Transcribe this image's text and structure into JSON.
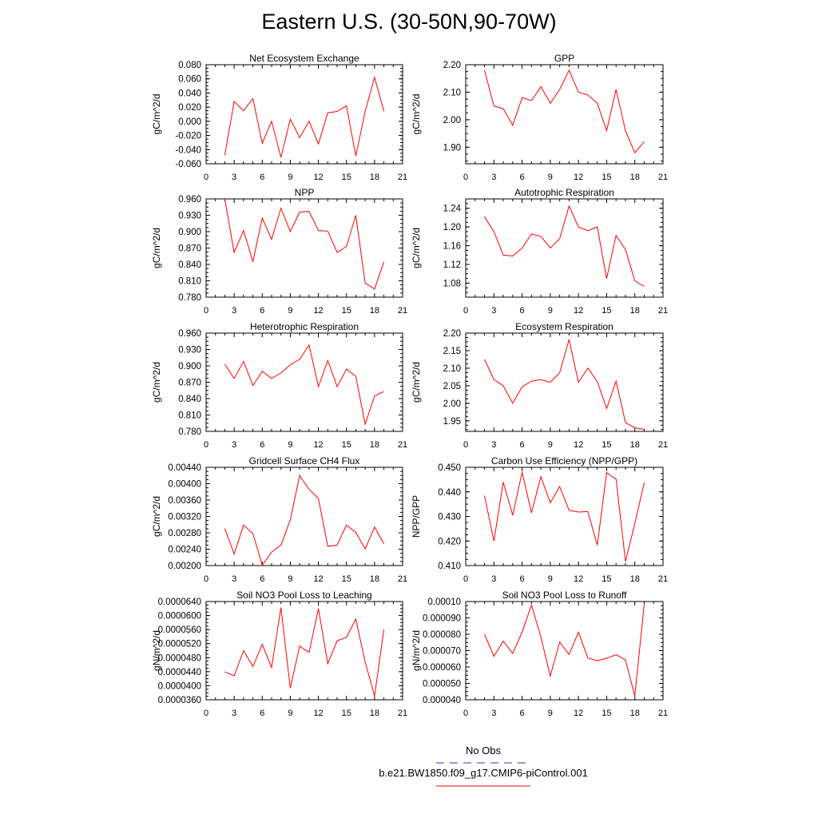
{
  "title": "Eastern U.S. (30-50N,90-70W)",
  "colors": {
    "series": "#ff0000",
    "obs": "#3333cc",
    "axis": "#000000"
  },
  "legend": [
    {
      "label": "No Obs",
      "color": "#3333cc",
      "style": "dashed"
    },
    {
      "label": "b.e21.BW1850.f09_g17.CMIP6-piControl.001",
      "color": "#ff0000",
      "style": "solid"
    }
  ],
  "chart_data": [
    {
      "type": "line",
      "title": "Net Ecosystem Exchange",
      "ylabel": "gC/m^2/d",
      "xlabel": "",
      "xlim": [
        0,
        21
      ],
      "xticks": [
        "0",
        "3",
        "6",
        "9",
        "12",
        "15",
        "18",
        "21"
      ],
      "ylim": [
        -0.06,
        0.08
      ],
      "yticks": [
        "-0.060",
        "-0.040",
        "-0.020",
        "0.000",
        "0.020",
        "0.040",
        "0.060",
        "0.080"
      ],
      "x": [
        2,
        3,
        4,
        5,
        6,
        7,
        8,
        9,
        10,
        11,
        12,
        13,
        14,
        15,
        16,
        17,
        18,
        19
      ],
      "series": [
        {
          "name": "b.e21.BW1850.f09_g17.CMIP6-piControl.001",
          "values": [
            -0.048,
            0.028,
            0.015,
            0.032,
            -0.031,
            0.0,
            -0.051,
            0.003,
            -0.023,
            0.0,
            -0.032,
            0.012,
            0.014,
            0.022,
            -0.049,
            0.014,
            0.062,
            0.014
          ]
        }
      ]
    },
    {
      "type": "line",
      "title": "GPP",
      "ylabel": "gC/m^2/d",
      "xlabel": "",
      "xlim": [
        0,
        21
      ],
      "xticks": [
        "0",
        "3",
        "6",
        "9",
        "12",
        "15",
        "18",
        "21"
      ],
      "ylim": [
        1.84,
        2.2
      ],
      "yticks": [
        "1.90",
        "2.00",
        "2.10",
        "2.20"
      ],
      "x": [
        2,
        3,
        4,
        5,
        6,
        7,
        8,
        9,
        10,
        11,
        12,
        13,
        14,
        15,
        16,
        17,
        18,
        19
      ],
      "series": [
        {
          "name": "b.e21.BW1850.f09_g17.CMIP6-piControl.001",
          "values": [
            2.18,
            2.05,
            2.04,
            1.98,
            2.08,
            2.07,
            2.12,
            2.06,
            2.11,
            2.18,
            2.1,
            2.09,
            2.06,
            1.96,
            2.11,
            1.96,
            1.88,
            1.92
          ]
        }
      ]
    },
    {
      "type": "line",
      "title": "NPP",
      "ylabel": "gC/m^2/d",
      "xlabel": "",
      "xlim": [
        0,
        21
      ],
      "xticks": [
        "0",
        "3",
        "6",
        "9",
        "12",
        "15",
        "18",
        "21"
      ],
      "ylim": [
        0.78,
        0.96
      ],
      "yticks": [
        "0.780",
        "0.810",
        "0.840",
        "0.870",
        "0.900",
        "0.930",
        "0.960"
      ],
      "x": [
        2,
        3,
        4,
        5,
        6,
        7,
        8,
        9,
        10,
        11,
        12,
        13,
        14,
        15,
        16,
        17,
        18,
        19
      ],
      "series": [
        {
          "name": "b.e21.BW1850.f09_g17.CMIP6-piControl.001",
          "values": [
            0.96,
            0.862,
            0.902,
            0.845,
            0.925,
            0.886,
            0.943,
            0.9,
            0.936,
            0.937,
            0.902,
            0.901,
            0.862,
            0.873,
            0.93,
            0.806,
            0.795,
            0.845
          ]
        }
      ]
    },
    {
      "type": "line",
      "title": "Autotrophic Respiration",
      "ylabel": "gC/m^2/d",
      "xlabel": "",
      "xlim": [
        0,
        21
      ],
      "xticks": [
        "0",
        "3",
        "6",
        "9",
        "12",
        "15",
        "18",
        "21"
      ],
      "ylim": [
        1.05,
        1.26
      ],
      "yticks": [
        "1.08",
        "1.12",
        "1.16",
        "1.20",
        "1.24"
      ],
      "x": [
        2,
        3,
        4,
        5,
        6,
        7,
        8,
        9,
        10,
        11,
        12,
        13,
        14,
        15,
        16,
        17,
        18,
        19
      ],
      "series": [
        {
          "name": "b.e21.BW1850.f09_g17.CMIP6-piControl.001",
          "values": [
            1.222,
            1.19,
            1.14,
            1.138,
            1.155,
            1.185,
            1.18,
            1.155,
            1.175,
            1.245,
            1.2,
            1.192,
            1.2,
            1.09,
            1.182,
            1.152,
            1.085,
            1.073
          ]
        }
      ]
    },
    {
      "type": "line",
      "title": "Heterotrophic Respiration",
      "ylabel": "gC/m^2/d",
      "xlabel": "",
      "xlim": [
        0,
        21
      ],
      "xticks": [
        "0",
        "3",
        "6",
        "9",
        "12",
        "15",
        "18",
        "21"
      ],
      "ylim": [
        0.78,
        0.96
      ],
      "yticks": [
        "0.780",
        "0.810",
        "0.840",
        "0.870",
        "0.900",
        "0.930",
        "0.960"
      ],
      "x": [
        2,
        3,
        4,
        5,
        6,
        7,
        8,
        9,
        10,
        11,
        12,
        13,
        14,
        15,
        16,
        17,
        18,
        19
      ],
      "series": [
        {
          "name": "b.e21.BW1850.f09_g17.CMIP6-piControl.001",
          "values": [
            0.903,
            0.877,
            0.908,
            0.864,
            0.89,
            0.877,
            0.887,
            0.902,
            0.912,
            0.938,
            0.862,
            0.91,
            0.862,
            0.894,
            0.881,
            0.793,
            0.845,
            0.853
          ]
        }
      ]
    },
    {
      "type": "line",
      "title": "Ecosystem Respiration",
      "ylabel": "gC/m^2/d",
      "xlabel": "",
      "xlim": [
        0,
        21
      ],
      "xticks": [
        "0",
        "3",
        "6",
        "9",
        "12",
        "15",
        "18",
        "21"
      ],
      "ylim": [
        1.92,
        2.2
      ],
      "yticks": [
        "1.95",
        "2.00",
        "2.05",
        "2.10",
        "2.15",
        "2.20"
      ],
      "x": [
        2,
        3,
        4,
        5,
        6,
        7,
        8,
        9,
        10,
        11,
        12,
        13,
        14,
        15,
        16,
        17,
        18,
        19
      ],
      "series": [
        {
          "name": "b.e21.BW1850.f09_g17.CMIP6-piControl.001",
          "values": [
            2.125,
            2.068,
            2.05,
            2.0,
            2.047,
            2.063,
            2.067,
            2.06,
            2.087,
            2.182,
            2.06,
            2.1,
            2.062,
            1.985,
            2.063,
            1.945,
            1.93,
            1.926
          ]
        }
      ]
    },
    {
      "type": "line",
      "title": "Gridcell Surface CH4 Flux",
      "ylabel": "gC/m^2/d",
      "xlabel": "",
      "xlim": [
        0,
        21
      ],
      "xticks": [
        "0",
        "3",
        "6",
        "9",
        "12",
        "15",
        "18",
        "21"
      ],
      "ylim": [
        0.002,
        0.0044
      ],
      "yticks": [
        "0.00200",
        "0.00240",
        "0.00280",
        "0.00320",
        "0.00360",
        "0.00400",
        "0.00440"
      ],
      "x": [
        2,
        3,
        4,
        5,
        6,
        7,
        8,
        9,
        10,
        11,
        12,
        13,
        14,
        15,
        16,
        17,
        18,
        19
      ],
      "series": [
        {
          "name": "b.e21.BW1850.f09_g17.CMIP6-piControl.001",
          "values": [
            0.00291,
            0.00228,
            0.00299,
            0.00278,
            0.00201,
            0.00233,
            0.0025,
            0.00312,
            0.0042,
            0.00386,
            0.00364,
            0.00247,
            0.0025,
            0.00299,
            0.00281,
            0.00241,
            0.00294,
            0.00253
          ]
        }
      ]
    },
    {
      "type": "line",
      "title": "Carbon Use Efficiency (NPP/GPP)",
      "ylabel": "NPP/GPP",
      "xlabel": "",
      "xlim": [
        0,
        21
      ],
      "xticks": [
        "0",
        "3",
        "6",
        "9",
        "12",
        "15",
        "18",
        "21"
      ],
      "ylim": [
        0.41,
        0.45
      ],
      "yticks": [
        "0.410",
        "0.420",
        "0.430",
        "0.440",
        "0.450"
      ],
      "x": [
        2,
        3,
        4,
        5,
        6,
        7,
        8,
        9,
        10,
        11,
        12,
        13,
        14,
        15,
        16,
        17,
        18,
        19
      ],
      "series": [
        {
          "name": "b.e21.BW1850.f09_g17.CMIP6-piControl.001",
          "values": [
            0.4385,
            0.42,
            0.444,
            0.4305,
            0.448,
            0.4315,
            0.4462,
            0.4355,
            0.4422,
            0.4325,
            0.4318,
            0.432,
            0.4183,
            0.4478,
            0.4452,
            0.4117,
            0.4272,
            0.4437
          ]
        }
      ]
    },
    {
      "type": "line",
      "title": "Soil NO3 Pool Loss to Leaching",
      "ylabel": "gN/m^2/d",
      "xlabel": "",
      "xlim": [
        0,
        21
      ],
      "xticks": [
        "0",
        "3",
        "6",
        "9",
        "12",
        "15",
        "18",
        "21"
      ],
      "ylim": [
        3.6e-05,
        6.4e-05
      ],
      "yticks": [
        "0.0000360",
        "0.0000400",
        "0.0000440",
        "0.0000480",
        "0.0000520",
        "0.0000560",
        "0.0000600",
        "0.0000640"
      ],
      "x": [
        2,
        3,
        4,
        5,
        6,
        7,
        8,
        9,
        10,
        11,
        12,
        13,
        14,
        15,
        16,
        17,
        18,
        19
      ],
      "series": [
        {
          "name": "b.e21.BW1850.f09_g17.CMIP6-piControl.001",
          "values": [
            4.4e-05,
            4.28e-05,
            5e-05,
            4.55e-05,
            5.18e-05,
            4.52e-05,
            6.23e-05,
            3.93e-05,
            5.13e-05,
            4.95e-05,
            6.2e-05,
            4.63e-05,
            5.28e-05,
            5.38e-05,
            5.9e-05,
            4.68e-05,
            3.71e-05,
            5.61e-05
          ]
        }
      ]
    },
    {
      "type": "line",
      "title": "Soil NO3 Pool Loss to Runoff",
      "ylabel": "gN/m^2/d",
      "xlabel": "",
      "xlim": [
        0,
        21
      ],
      "xticks": [
        "0",
        "3",
        "6",
        "9",
        "12",
        "15",
        "18",
        "21"
      ],
      "ylim": [
        4e-05,
        0.0001
      ],
      "yticks": [
        "0.000040",
        "0.000050",
        "0.000060",
        "0.000070",
        "0.000080",
        "0.000090",
        "0.00010"
      ],
      "x": [
        2,
        3,
        4,
        5,
        6,
        7,
        8,
        9,
        10,
        11,
        12,
        13,
        14,
        15,
        16,
        17,
        18,
        19
      ],
      "series": [
        {
          "name": "b.e21.BW1850.f09_g17.CMIP6-piControl.001",
          "values": [
            8e-05,
            6.66e-05,
            7.58e-05,
            6.83e-05,
            8.13e-05,
            9.78e-05,
            7.83e-05,
            5.45e-05,
            7.52e-05,
            6.76e-05,
            8.13e-05,
            6.55e-05,
            6.38e-05,
            6.53e-05,
            6.75e-05,
            6.43e-05,
            4.23e-05,
            9.87e-05
          ]
        }
      ]
    }
  ]
}
